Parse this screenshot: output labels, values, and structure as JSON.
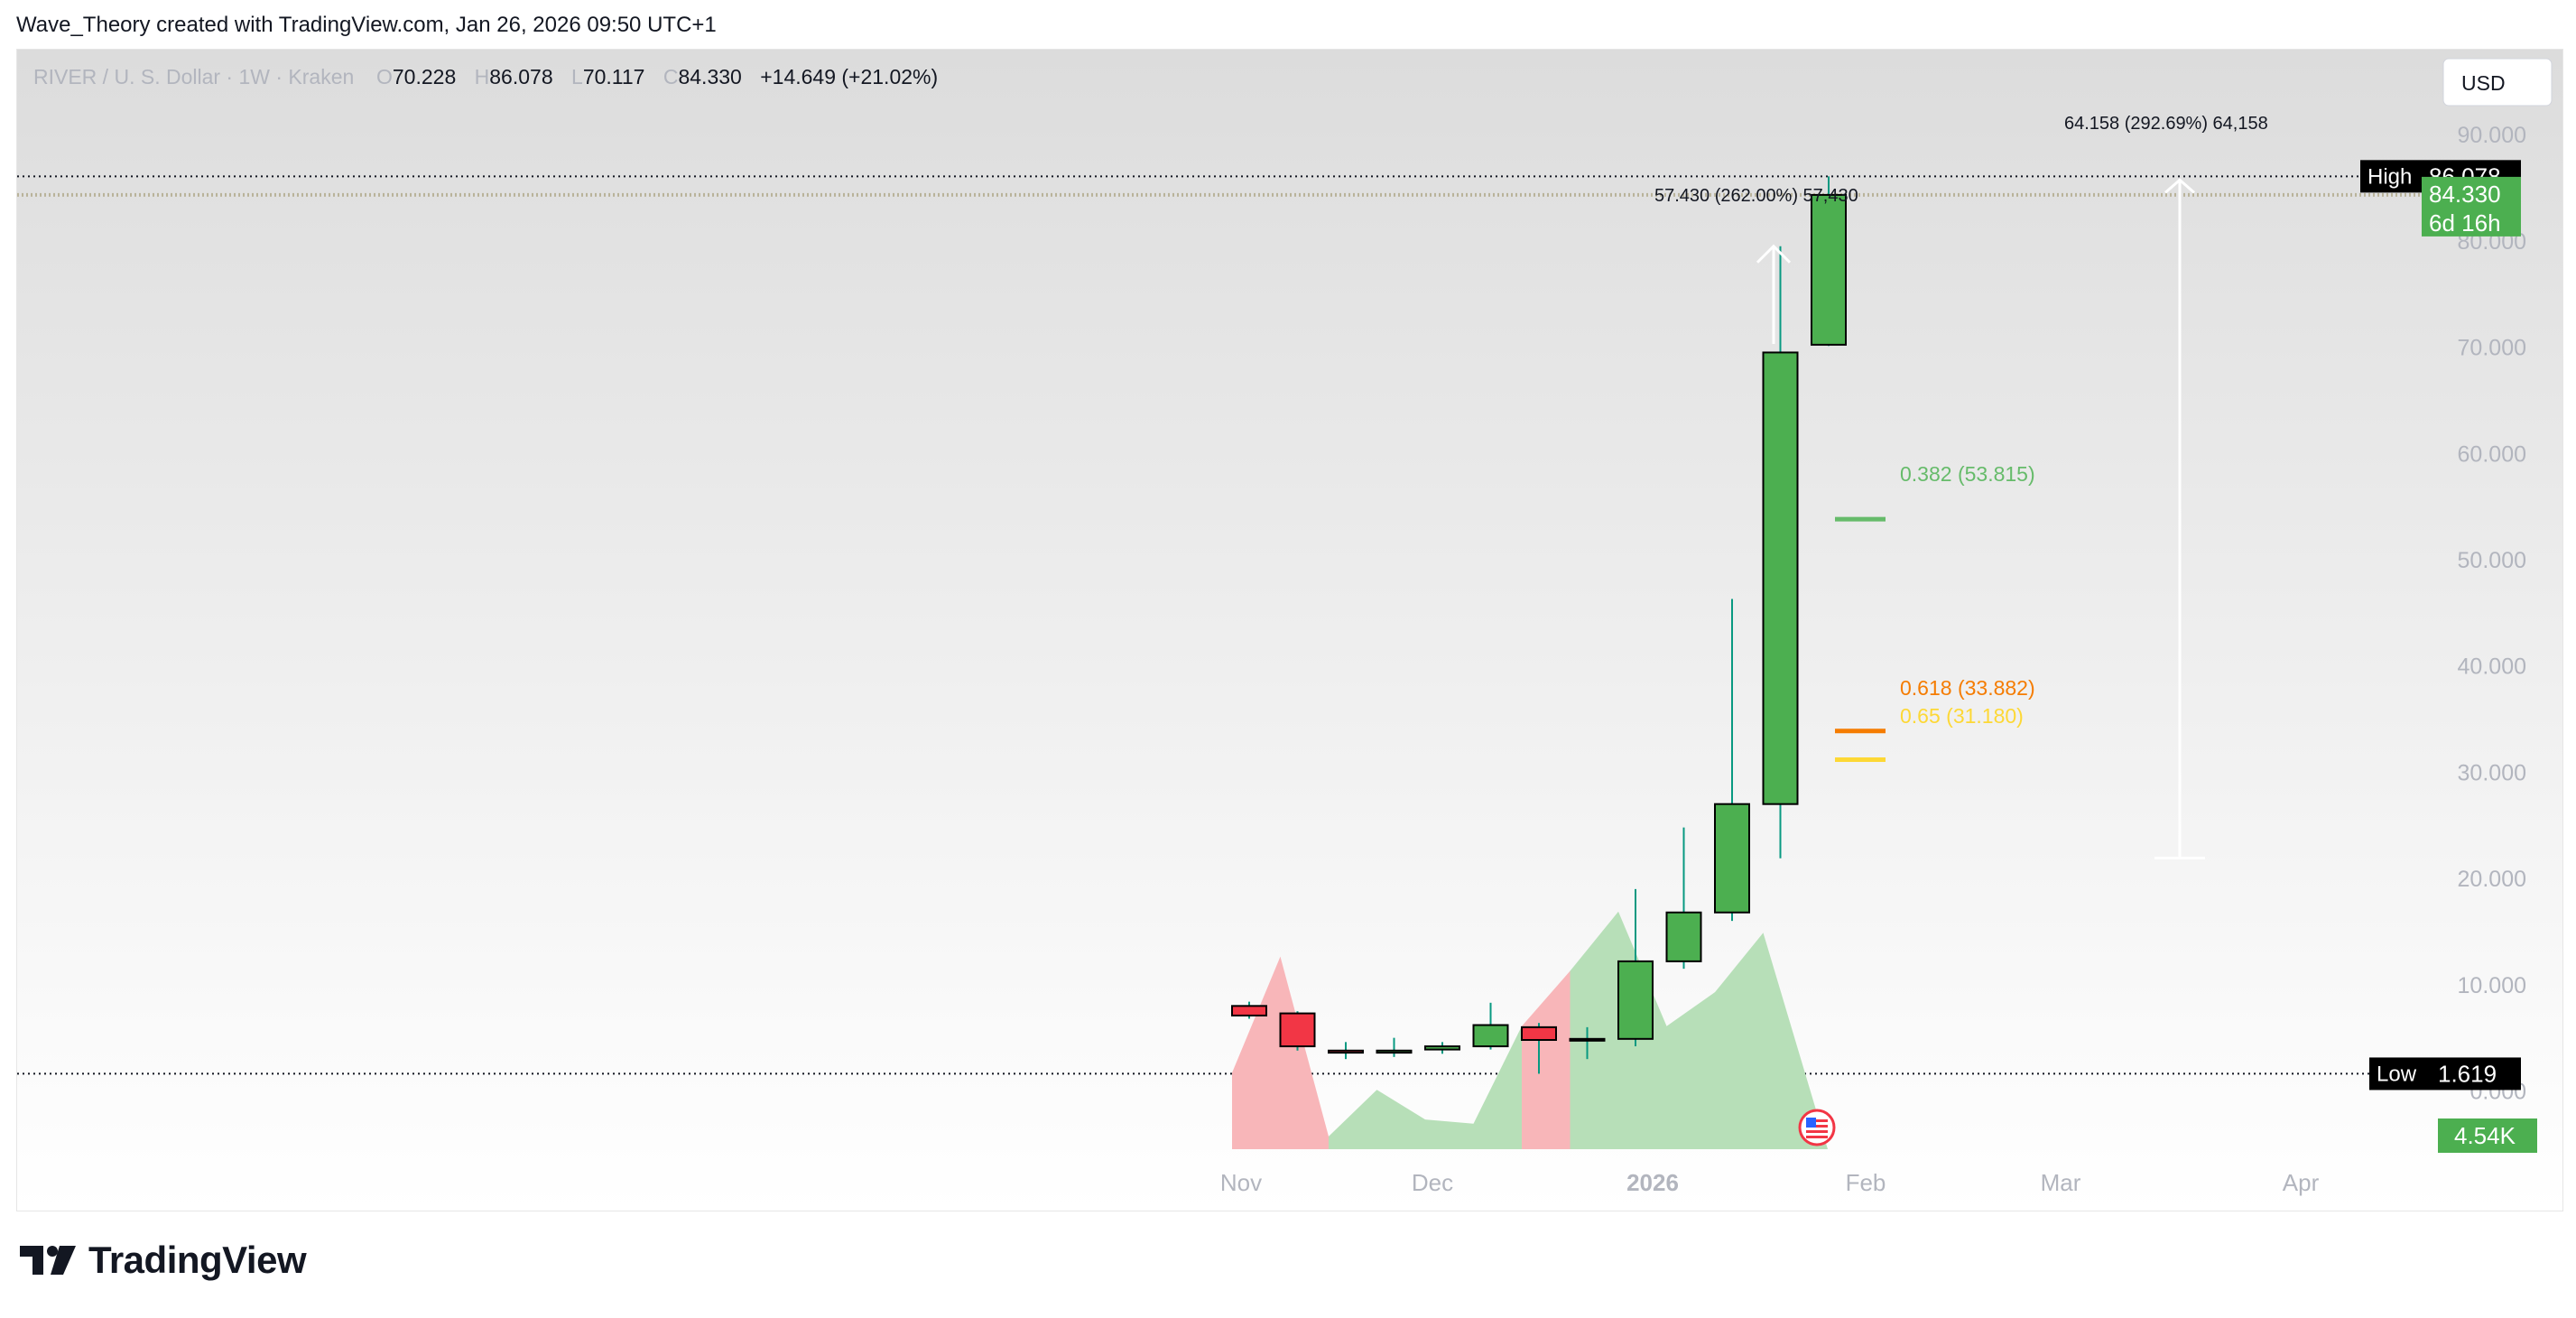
{
  "header": {
    "attribution": "Wave_Theory created with TradingView.com, Jan 26, 2026 09:50 UTC+1"
  },
  "legend": {
    "symbol": "RIVER / U. S. Dollar · 1W · Kraken",
    "o_label": "O",
    "o_value": "70.228",
    "h_label": "H",
    "h_value": "86.078",
    "l_label": "L",
    "l_value": "70.117",
    "c_label": "C",
    "c_value": "84.330",
    "change": "+14.649 (+21.02%)"
  },
  "currency_button": "USD",
  "high_marker": {
    "label": "High",
    "value": "86.078"
  },
  "low_marker": {
    "label": "Low",
    "value": "1.619"
  },
  "last_price": {
    "value": "84.330",
    "countdown": "6d 16h"
  },
  "volume_badge": "4.54K",
  "measure_labels": {
    "long": "64.158 (292.69%) 64,158",
    "short": "57.430 (262.00%) 57,430"
  },
  "fib_levels": [
    {
      "label": "0.382 (53.815)",
      "price": 53.815,
      "color": "#66bb6a"
    },
    {
      "label": "0.618 (33.882)",
      "price": 33.882,
      "color": "#f57c00"
    },
    {
      "label": "0.65 (31.180)",
      "price": 31.18,
      "color": "#fdd835"
    }
  ],
  "colors": {
    "up": "#4caf50",
    "down": "#f23645",
    "wick": "#089981",
    "vol_up": "#b7dfb8",
    "vol_down": "#f8b6b9",
    "label_dark": "#000000",
    "price_green": "#4caf50",
    "axis_text": "#b2b5be"
  },
  "branding": {
    "wordmark": "TradingView",
    "logo_icon": "tradingview-logo-icon"
  },
  "chart_data": {
    "type": "candlestick",
    "title": "RIVER / U. S. Dollar · 1W · Kraken",
    "y_ticks": [
      "0.000",
      "10.000",
      "20.000",
      "30.000",
      "40.000",
      "50.000",
      "60.000",
      "70.000",
      "80.000",
      "90.000"
    ],
    "x_ticks": [
      "Nov",
      "Dec",
      "2026",
      "Feb",
      "Mar",
      "Apr"
    ],
    "ylim": [
      -6.5,
      98
    ],
    "grid": false,
    "candles": [
      {
        "o": 8.0,
        "h": 8.4,
        "l": 6.8,
        "c": 7.1
      },
      {
        "o": 7.3,
        "h": 7.5,
        "l": 3.8,
        "c": 4.2
      },
      {
        "o": 3.8,
        "h": 4.6,
        "l": 3.0,
        "c": 3.6
      },
      {
        "o": 3.6,
        "h": 5.0,
        "l": 3.2,
        "c": 3.8
      },
      {
        "o": 3.9,
        "h": 4.6,
        "l": 3.5,
        "c": 4.2
      },
      {
        "o": 4.2,
        "h": 8.3,
        "l": 3.9,
        "c": 6.2
      },
      {
        "o": 6.0,
        "h": 6.4,
        "l": 1.619,
        "c": 4.8
      },
      {
        "o": 4.8,
        "h": 6.0,
        "l": 3.0,
        "c": 4.9
      },
      {
        "o": 4.9,
        "h": 19.0,
        "l": 4.2,
        "c": 12.2
      },
      {
        "o": 12.2,
        "h": 24.8,
        "l": 11.5,
        "c": 16.8
      },
      {
        "o": 16.8,
        "h": 46.3,
        "l": 16.0,
        "c": 27.0
      },
      {
        "o": 27.0,
        "h": 79.5,
        "l": 21.9,
        "c": 69.5
      },
      {
        "o": 70.228,
        "h": 86.078,
        "l": 70.117,
        "c": 84.33
      }
    ],
    "volume": [
      1.8,
      4.54,
      0.3,
      1.4,
      0.7,
      0.6,
      2.9,
      4.2,
      5.6,
      2.9,
      3.7,
      5.1,
      0.4
    ],
    "volume_direction": [
      "down",
      "down",
      "up",
      "up",
      "up",
      "up",
      "down",
      "up",
      "up",
      "up",
      "up",
      "up",
      "up"
    ]
  }
}
